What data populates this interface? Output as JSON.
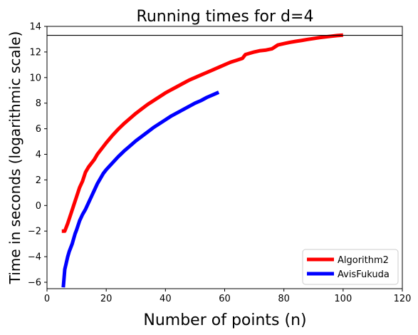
{
  "chart_data": {
    "type": "line",
    "title": "Running times for d=4",
    "xlabel": "Number of points (n)",
    "ylabel": "Time in seconds (logarithmic scale)",
    "xlim": [
      0,
      120
    ],
    "ylim": [
      -6.5,
      14
    ],
    "x_ticks": [
      0,
      20,
      40,
      60,
      80,
      100,
      120
    ],
    "y_ticks": [
      -6,
      -4,
      -2,
      0,
      2,
      4,
      6,
      8,
      10,
      12,
      14
    ],
    "x_tick_labels": [
      "0",
      "20",
      "40",
      "60",
      "80",
      "100",
      "120"
    ],
    "y_tick_labels": [
      "−6",
      "−4",
      "−2",
      "0",
      "2",
      "4",
      "6",
      "8",
      "10",
      "12",
      "14"
    ],
    "grid": false,
    "legend_position": "lower-right",
    "reference_line": {
      "y": 13.3,
      "color": "#000000"
    },
    "series": [
      {
        "name": "Algorithm2",
        "color": "#ff0000",
        "x": [
          5,
          6,
          7,
          8,
          9,
          10,
          11,
          12,
          13,
          14,
          15,
          16,
          17,
          18,
          19,
          20,
          22,
          24,
          26,
          28,
          30,
          32,
          34,
          36,
          38,
          40,
          42,
          44,
          46,
          48,
          50,
          52,
          54,
          56,
          58,
          60,
          62,
          64,
          66,
          67,
          70,
          72,
          74,
          76,
          77,
          78,
          80,
          82,
          84,
          86,
          88,
          90,
          92,
          94,
          96,
          98,
          100
        ],
        "y": [
          -2.0,
          -2.0,
          -1.4,
          -0.7,
          0.0,
          0.7,
          1.4,
          1.9,
          2.6,
          3.0,
          3.3,
          3.6,
          4.0,
          4.3,
          4.6,
          4.9,
          5.45,
          5.95,
          6.4,
          6.8,
          7.2,
          7.55,
          7.9,
          8.2,
          8.5,
          8.8,
          9.05,
          9.3,
          9.55,
          9.8,
          10.0,
          10.2,
          10.4,
          10.6,
          10.8,
          11.0,
          11.2,
          11.35,
          11.5,
          11.8,
          12.0,
          12.1,
          12.15,
          12.25,
          12.4,
          12.55,
          12.65,
          12.75,
          12.83,
          12.9,
          12.98,
          13.05,
          13.12,
          13.18,
          13.23,
          13.28,
          13.32
        ]
      },
      {
        "name": "AvisFukuda",
        "color": "#0000ff",
        "x": [
          5.5,
          6,
          6.5,
          7,
          7.5,
          8,
          8.5,
          9,
          9.5,
          10,
          11,
          12,
          13,
          14,
          15,
          16,
          17,
          18,
          19,
          20,
          22,
          24,
          26,
          28,
          30,
          32,
          34,
          36,
          38,
          40,
          42,
          44,
          46,
          48,
          50,
          52,
          54,
          56,
          58
        ],
        "y": [
          -6.4,
          -5.0,
          -4.5,
          -4.0,
          -3.6,
          -3.3,
          -3.0,
          -2.6,
          -2.2,
          -1.9,
          -1.2,
          -0.7,
          -0.3,
          0.2,
          0.7,
          1.2,
          1.7,
          2.1,
          2.5,
          2.8,
          3.3,
          3.8,
          4.25,
          4.65,
          5.05,
          5.4,
          5.75,
          6.1,
          6.4,
          6.7,
          7.0,
          7.25,
          7.5,
          7.75,
          8.0,
          8.2,
          8.45,
          8.65,
          8.85
        ]
      }
    ]
  }
}
